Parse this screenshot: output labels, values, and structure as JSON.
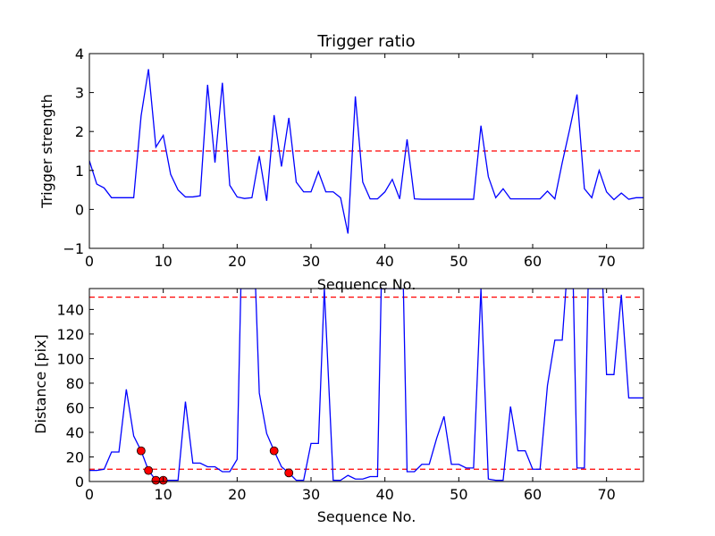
{
  "chart_data": [
    {
      "type": "line",
      "title": "Trigger ratio",
      "xlabel": "Sequence No.",
      "ylabel": "Trigger strength",
      "xlim": [
        0,
        75
      ],
      "ylim": [
        -1,
        4
      ],
      "xticks": [
        0,
        10,
        20,
        30,
        40,
        50,
        60,
        70
      ],
      "yticks": [
        -1,
        0,
        1,
        2,
        3,
        4
      ],
      "xtick_labels": [
        "0",
        "10",
        "20",
        "30",
        "40",
        "50",
        "60",
        "70"
      ],
      "ytick_labels": [
        "−1",
        "0",
        "1",
        "2",
        "3",
        "4"
      ],
      "grid": false,
      "series": [
        {
          "color": "#0000ff",
          "x": [
            0,
            1,
            2,
            3,
            4,
            5,
            6,
            7,
            8,
            9,
            10,
            11,
            12,
            13,
            14,
            15,
            16,
            17,
            18,
            19,
            20,
            21,
            22,
            23,
            24,
            25,
            26,
            27,
            28,
            29,
            30,
            31,
            32,
            33,
            34,
            35,
            36,
            37,
            38,
            39,
            40,
            41,
            42,
            43,
            44,
            45,
            46,
            47,
            48,
            49,
            50,
            51,
            52,
            53,
            54,
            55,
            56,
            57,
            58,
            59,
            60,
            61,
            62,
            63,
            64,
            65,
            66,
            67,
            68,
            69,
            70,
            71,
            72,
            73,
            74,
            75
          ],
          "values": [
            1.25,
            0.65,
            0.55,
            0.3,
            0.3,
            0.3,
            0.3,
            2.4,
            3.6,
            1.6,
            1.9,
            0.9,
            0.5,
            0.32,
            0.32,
            0.35,
            3.2,
            1.2,
            3.25,
            0.62,
            0.32,
            0.28,
            0.3,
            1.37,
            0.22,
            2.42,
            1.1,
            2.35,
            0.7,
            0.45,
            0.45,
            0.97,
            0.45,
            0.45,
            0.3,
            -0.62,
            2.9,
            0.7,
            0.27,
            0.27,
            0.45,
            0.77,
            0.27,
            1.8,
            0.27,
            0.26,
            0.26,
            0.26,
            0.26,
            0.26,
            0.26,
            0.26,
            0.26,
            2.15,
            0.84,
            0.3,
            0.53,
            0.27,
            0.27,
            0.27,
            0.27,
            0.27,
            0.47,
            0.27,
            1.2,
            2.05,
            2.95,
            0.53,
            0.3,
            1.0,
            0.45,
            0.25,
            0.42,
            0.26,
            0.3,
            0.3
          ]
        }
      ],
      "hlines": [
        {
          "y": 1.5,
          "color": "#ff0000",
          "style": "dashed"
        }
      ],
      "markers": []
    },
    {
      "type": "line",
      "title": "",
      "xlabel": "Sequence No.",
      "ylabel": "Distance [pix]",
      "xlim": [
        0,
        75
      ],
      "ylim": [
        0,
        157
      ],
      "xticks": [
        0,
        10,
        20,
        30,
        40,
        50,
        60,
        70
      ],
      "yticks": [
        0,
        20,
        40,
        60,
        80,
        100,
        120,
        140
      ],
      "xtick_labels": [
        "0",
        "10",
        "20",
        "30",
        "40",
        "50",
        "60",
        "70"
      ],
      "ytick_labels": [
        "0",
        "20",
        "40",
        "60",
        "80",
        "100",
        "120",
        "140"
      ],
      "grid": false,
      "series": [
        {
          "color": "#0000ff",
          "x": [
            0,
            1,
            2,
            3,
            4,
            5,
            6,
            7,
            8,
            9,
            10,
            11,
            12,
            13,
            14,
            15,
            16,
            17,
            18,
            19,
            20,
            20.5,
            22.5,
            23,
            24,
            25,
            26,
            27,
            28,
            29,
            30,
            31,
            31.8,
            33,
            34,
            35,
            36,
            37,
            38,
            39,
            39.5,
            42.5,
            43,
            44,
            45,
            46,
            47,
            48,
            49,
            50,
            51,
            52,
            53,
            54,
            55,
            56,
            57,
            58,
            59,
            60,
            61,
            62,
            63,
            64,
            64.5,
            65.5,
            66,
            67,
            67.5,
            69.5,
            70,
            71,
            72,
            73,
            74,
            75
          ],
          "values": [
            9,
            9,
            10,
            24,
            24,
            75,
            37,
            25,
            9,
            1,
            1,
            1,
            1,
            65,
            15,
            15,
            12,
            12,
            8,
            8,
            18,
            157,
            157,
            72,
            39,
            25,
            12,
            7,
            1,
            1,
            31,
            31,
            157,
            1,
            1,
            5,
            2,
            2,
            4,
            4,
            157,
            157,
            8,
            8,
            14,
            14,
            35,
            53,
            14,
            14,
            11,
            11,
            157,
            2,
            1,
            1,
            61,
            25,
            25,
            10,
            10,
            78,
            115,
            115,
            157,
            157,
            11,
            11,
            157,
            157,
            87,
            87,
            152,
            68,
            68,
            68
          ]
        }
      ],
      "hlines": [
        {
          "y": 150,
          "color": "#ff0000",
          "style": "dashed"
        },
        {
          "y": 10,
          "color": "#ff0000",
          "style": "dashed"
        }
      ],
      "markers": [
        {
          "x": 7,
          "y": 25,
          "color": "#ff0000"
        },
        {
          "x": 8,
          "y": 9,
          "color": "#ff0000"
        },
        {
          "x": 9,
          "y": 1,
          "color": "#ff0000"
        },
        {
          "x": 10,
          "y": 1,
          "color": "#ff0000"
        },
        {
          "x": 25,
          "y": 25,
          "color": "#ff0000"
        },
        {
          "x": 27,
          "y": 7,
          "color": "#ff0000"
        }
      ]
    }
  ]
}
